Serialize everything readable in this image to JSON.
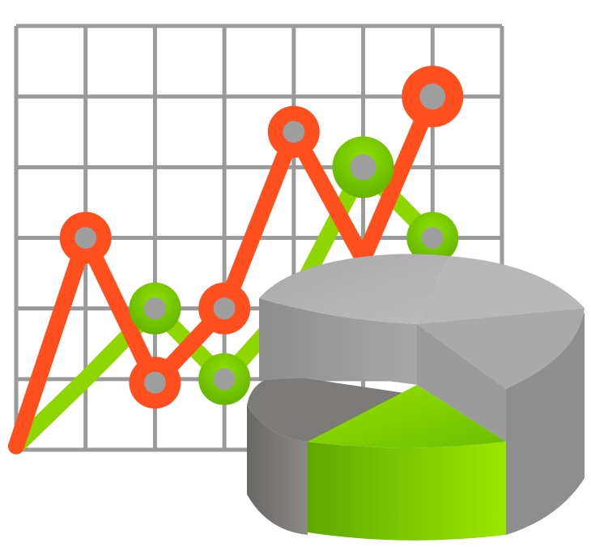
{
  "colors": {
    "grid": "#9a9a9a",
    "orange": "#ff4f1f",
    "green": "#8fd600",
    "green_dark": "#6ab400",
    "marker_fill": "#9e9e9e",
    "pie_light": "#b3b3b3",
    "pie_mid": "#a1a1a1",
    "pie_dark": "#6e6c69",
    "pie_green_light": "#9be000",
    "pie_green_dark": "#5a9e00"
  },
  "icons": {
    "chart": "line-chart-icon",
    "pie": "pie-chart-icon"
  },
  "chart_data": [
    {
      "type": "line",
      "title": "",
      "xlabel": "",
      "ylabel": "",
      "grid": true,
      "legend": "none",
      "x": [
        0,
        1,
        2,
        3,
        4,
        5,
        6
      ],
      "xlim": [
        0,
        7
      ],
      "ylim": [
        0,
        6
      ],
      "series": [
        {
          "color": "orange",
          "values": [
            0.05,
            3.0,
            0.95,
            2.0,
            4.5,
            2.7,
            5.0
          ],
          "markers": [
            false,
            true,
            true,
            true,
            true,
            false,
            true
          ]
        },
        {
          "color": "green",
          "values": [
            0.05,
            1.0,
            2.0,
            1.0,
            2.1,
            4.0,
            3.0
          ],
          "markers": [
            false,
            false,
            true,
            true,
            false,
            true,
            true
          ]
        }
      ]
    },
    {
      "type": "pie",
      "title": "",
      "style": "3d-exploded",
      "slices": [
        {
          "color": "pie_light",
          "value": 0.19
        },
        {
          "color": "pie_mid",
          "value": 0.17
        },
        {
          "color": "pie_green_light",
          "value": 0.19,
          "exploded": true
        },
        {
          "color": "pie_dark",
          "value": 0.45
        }
      ]
    }
  ]
}
